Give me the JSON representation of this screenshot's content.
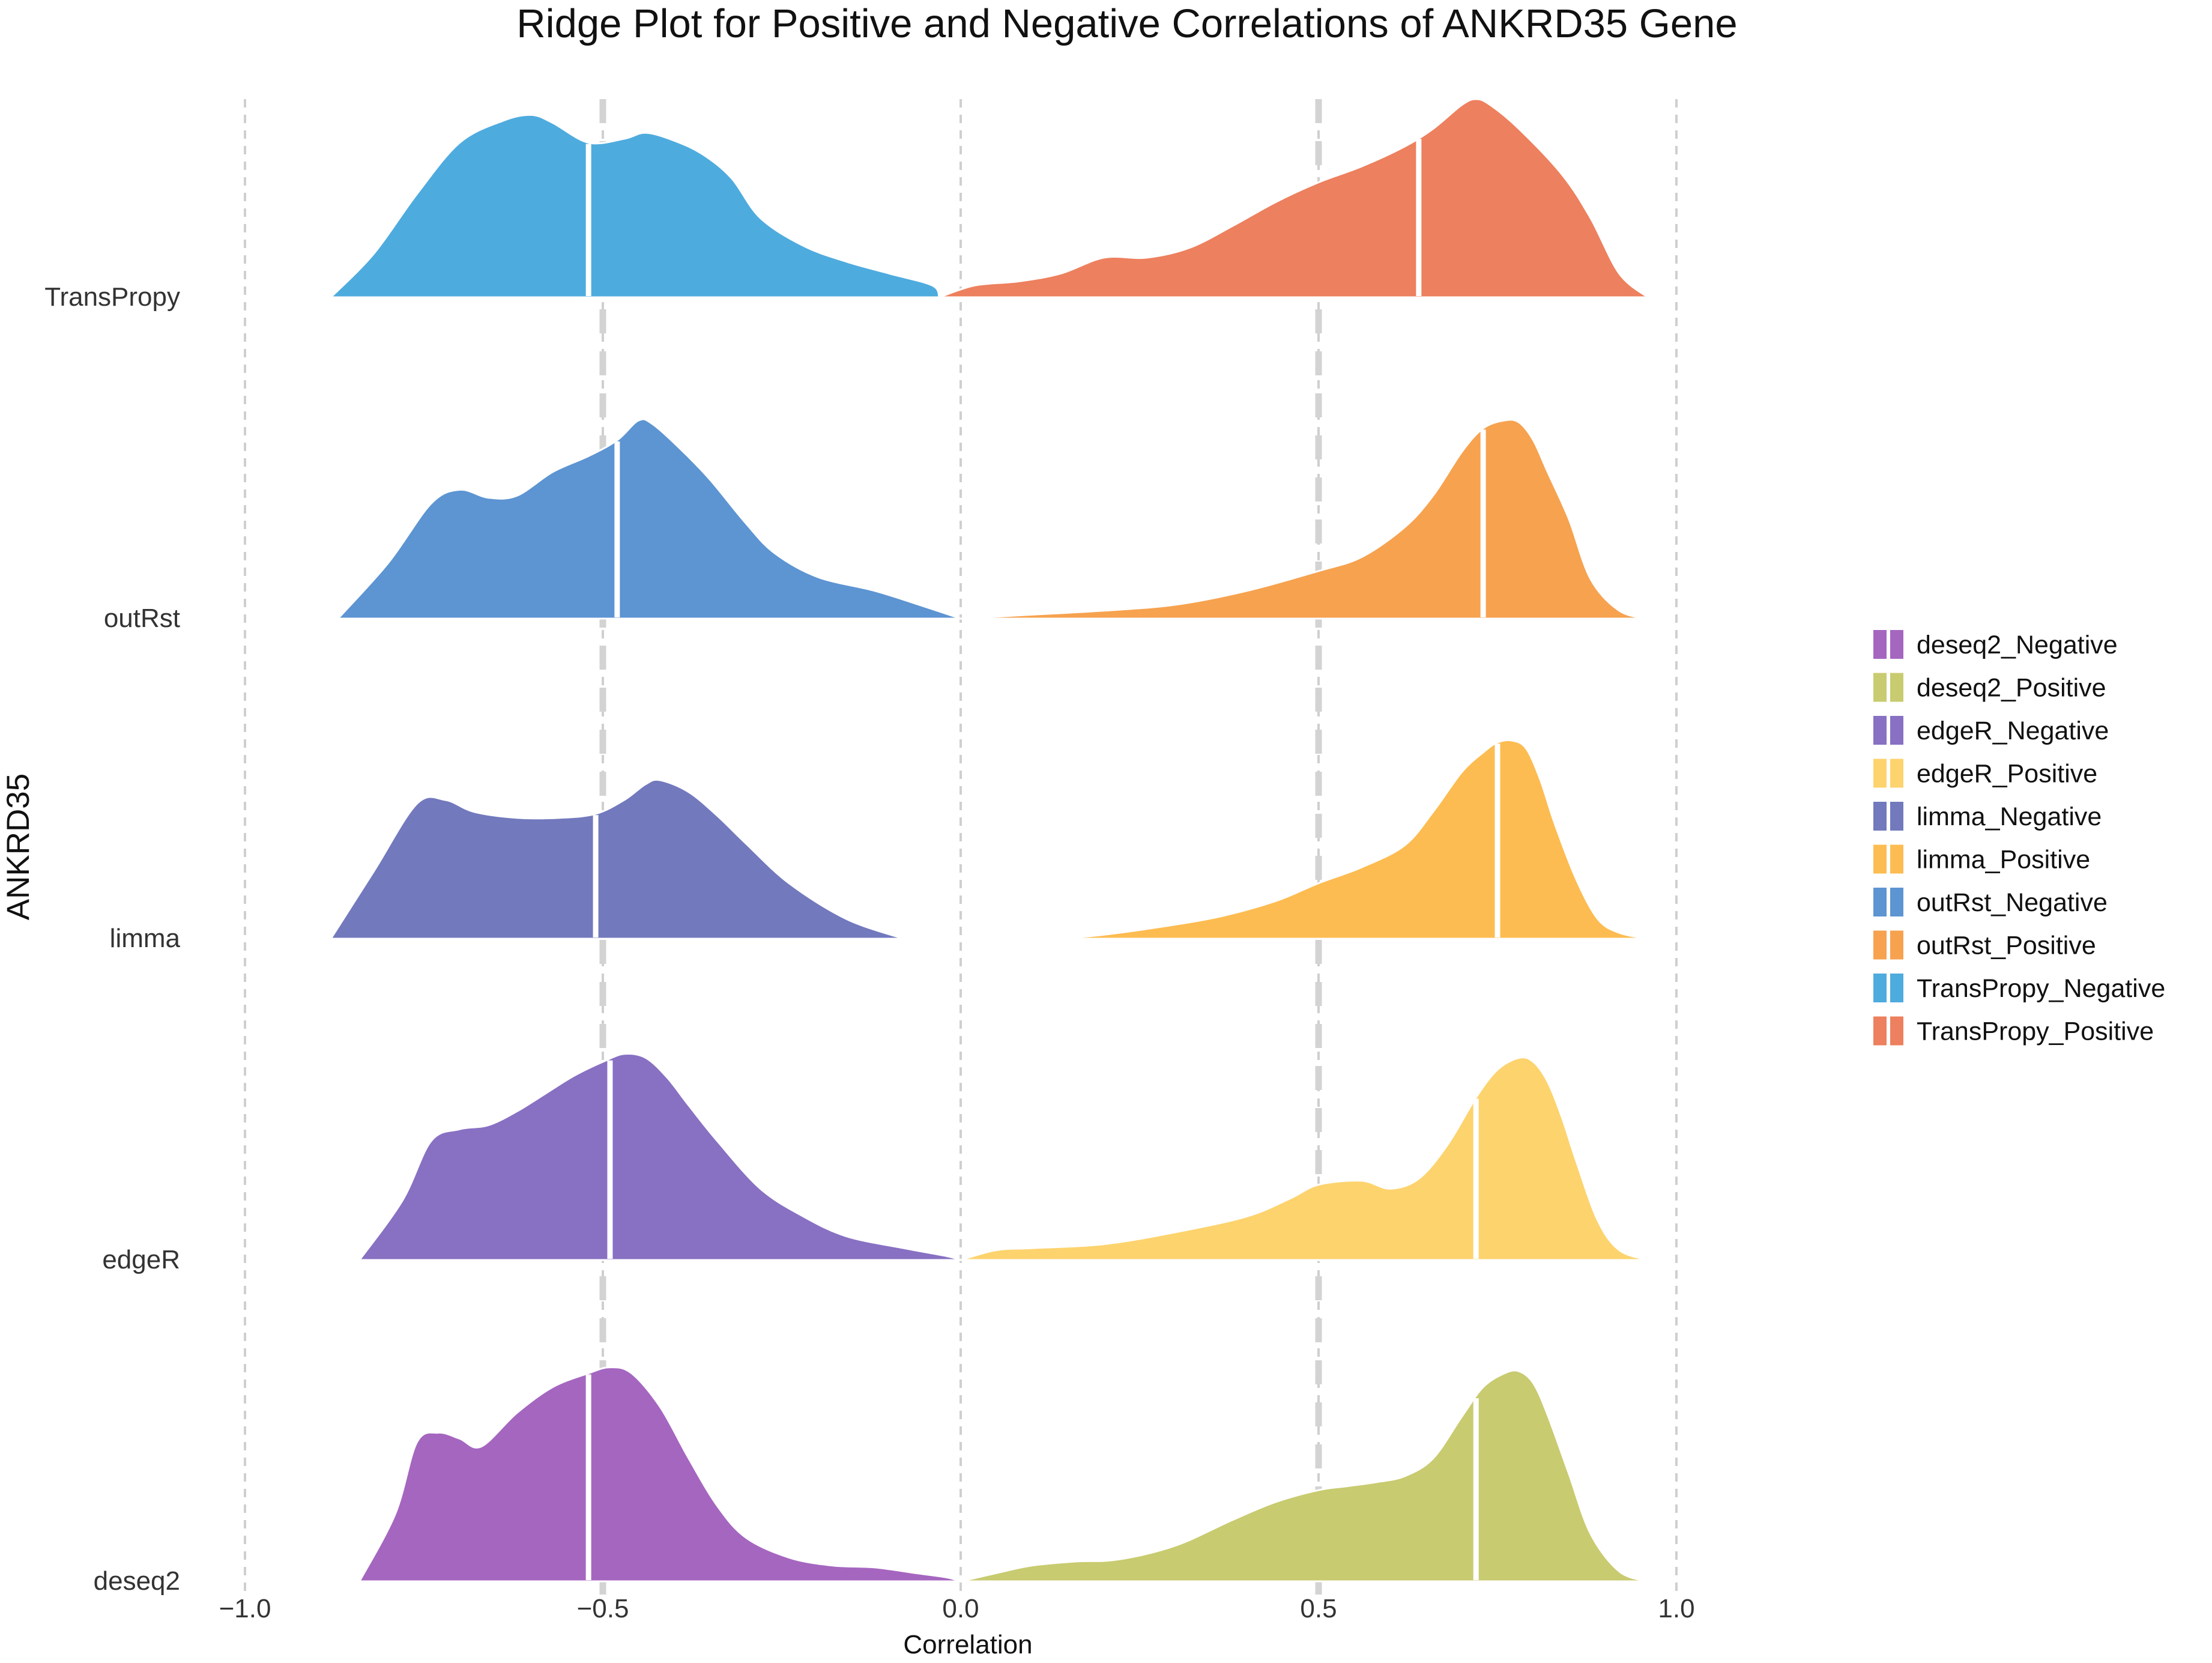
{
  "chart_data": {
    "type": "ridge",
    "title": "Ridge Plot for Positive and Negative Correlations of ANKRD35 Gene",
    "xlabel": "Correlation",
    "ylabel": "ANKRD35",
    "xlim": [
      -1.0,
      1.0
    ],
    "x_ticks": [
      "−1.0",
      "−0.5",
      "0.0",
      "0.5",
      "1.0"
    ],
    "x_tick_values": [
      -1.0,
      -0.5,
      0.0,
      0.5,
      1.0
    ],
    "reference_lines": [
      {
        "x": -0.5,
        "style": "dashed-bold"
      },
      {
        "x": 0.5,
        "style": "dashed-bold"
      }
    ],
    "grid": "vertical dashed",
    "legend_position": "right",
    "categories": [
      "deseq2",
      "edgeR",
      "limma",
      "outRst",
      "TransPropy"
    ],
    "series": [
      {
        "name": "TransPropy_Negative",
        "category": "TransPropy",
        "color": "#4EABDE",
        "median": -0.52,
        "x": [
          -0.88,
          -0.82,
          -0.76,
          -0.7,
          -0.64,
          -0.6,
          -0.57,
          -0.52,
          -0.47,
          -0.44,
          -0.4,
          -0.36,
          -0.32,
          -0.28,
          -0.22,
          -0.16,
          -0.1,
          -0.04,
          -0.03
        ],
        "y": [
          0.0,
          0.22,
          0.52,
          0.78,
          0.89,
          0.92,
          0.88,
          0.78,
          0.8,
          0.83,
          0.79,
          0.72,
          0.6,
          0.4,
          0.26,
          0.18,
          0.12,
          0.06,
          0.0
        ]
      },
      {
        "name": "TransPropy_Positive",
        "category": "TransPropy",
        "color": "#ED805E",
        "median": 0.64,
        "x": [
          -0.03,
          0.02,
          0.08,
          0.14,
          0.2,
          0.26,
          0.32,
          0.38,
          0.44,
          0.5,
          0.56,
          0.62,
          0.66,
          0.7,
          0.72,
          0.74,
          0.78,
          0.84,
          0.88,
          0.92,
          0.96
        ],
        "y": [
          0.0,
          0.06,
          0.08,
          0.12,
          0.2,
          0.2,
          0.25,
          0.36,
          0.48,
          0.58,
          0.66,
          0.76,
          0.85,
          0.97,
          1.0,
          0.97,
          0.85,
          0.62,
          0.4,
          0.12,
          0.0
        ]
      },
      {
        "name": "outRst_Negative",
        "category": "outRst",
        "color": "#5D94D2",
        "median": -0.48,
        "x": [
          -0.87,
          -0.8,
          -0.74,
          -0.7,
          -0.66,
          -0.62,
          -0.57,
          -0.52,
          -0.48,
          -0.45,
          -0.43,
          -0.39,
          -0.35,
          -0.3,
          -0.26,
          -0.2,
          -0.12,
          -0.05,
          0.0
        ],
        "y": [
          0.0,
          0.28,
          0.58,
          0.65,
          0.61,
          0.62,
          0.74,
          0.82,
          0.9,
          1.0,
          0.98,
          0.85,
          0.7,
          0.48,
          0.33,
          0.21,
          0.14,
          0.06,
          0.0
        ]
      },
      {
        "name": "outRst_Positive",
        "category": "outRst",
        "color": "#F6A24F",
        "median": 0.73,
        "x": [
          0.0,
          0.05,
          0.1,
          0.2,
          0.3,
          0.4,
          0.5,
          0.56,
          0.62,
          0.66,
          0.7,
          0.73,
          0.76,
          0.78,
          0.8,
          0.82,
          0.85,
          0.88,
          0.92,
          0.96
        ],
        "y": [
          0.0,
          0.01,
          0.02,
          0.04,
          0.07,
          0.14,
          0.24,
          0.31,
          0.46,
          0.62,
          0.84,
          0.96,
          1.0,
          0.99,
          0.9,
          0.74,
          0.5,
          0.2,
          0.04,
          0.0
        ]
      },
      {
        "name": "limma_Negative",
        "category": "limma",
        "color": "#7279BD",
        "median": -0.51,
        "x": [
          -0.88,
          -0.82,
          -0.76,
          -0.72,
          -0.68,
          -0.62,
          -0.56,
          -0.51,
          -0.47,
          -0.44,
          -0.42,
          -0.38,
          -0.34,
          -0.3,
          -0.24,
          -0.16,
          -0.08
        ],
        "y": [
          0.0,
          0.34,
          0.68,
          0.7,
          0.64,
          0.61,
          0.61,
          0.63,
          0.7,
          0.78,
          0.8,
          0.74,
          0.62,
          0.48,
          0.28,
          0.1,
          0.0
        ]
      },
      {
        "name": "limma_Positive",
        "category": "limma",
        "color": "#FDBC51",
        "median": 0.75,
        "x": [
          0.14,
          0.2,
          0.28,
          0.36,
          0.44,
          0.5,
          0.56,
          0.62,
          0.66,
          0.7,
          0.73,
          0.75,
          0.77,
          0.79,
          0.81,
          0.83,
          0.86,
          0.89,
          0.92,
          0.96
        ],
        "y": [
          0.0,
          0.02,
          0.06,
          0.11,
          0.19,
          0.28,
          0.36,
          0.47,
          0.64,
          0.84,
          0.94,
          0.99,
          1.0,
          0.96,
          0.8,
          0.58,
          0.3,
          0.1,
          0.03,
          0.0
        ]
      },
      {
        "name": "edgeR_Negative",
        "category": "edgeR",
        "color": "#8870C3",
        "median": -0.49,
        "x": [
          -0.84,
          -0.78,
          -0.74,
          -0.7,
          -0.66,
          -0.62,
          -0.58,
          -0.54,
          -0.5,
          -0.47,
          -0.44,
          -0.41,
          -0.38,
          -0.34,
          -0.28,
          -0.22,
          -0.16,
          -0.08,
          -0.02,
          0.0
        ],
        "y": [
          0.0,
          0.3,
          0.6,
          0.66,
          0.68,
          0.75,
          0.84,
          0.93,
          1.0,
          1.04,
          1.02,
          0.92,
          0.78,
          0.6,
          0.36,
          0.22,
          0.12,
          0.06,
          0.02,
          0.0
        ]
      },
      {
        "name": "edgeR_Positive",
        "category": "edgeR",
        "color": "#FDD36E",
        "median": 0.72,
        "x": [
          0.0,
          0.05,
          0.1,
          0.2,
          0.3,
          0.4,
          0.46,
          0.5,
          0.56,
          0.6,
          0.64,
          0.68,
          0.72,
          0.75,
          0.78,
          0.8,
          0.82,
          0.84,
          0.86,
          0.89,
          0.92,
          0.96
        ],
        "y": [
          0.0,
          0.05,
          0.06,
          0.08,
          0.14,
          0.22,
          0.31,
          0.38,
          0.4,
          0.36,
          0.41,
          0.58,
          0.82,
          0.96,
          1.02,
          1.0,
          0.9,
          0.72,
          0.5,
          0.2,
          0.05,
          0.0
        ]
      },
      {
        "name": "deseq2_Negative",
        "category": "deseq2",
        "color": "#A566C0",
        "median": -0.52,
        "x": [
          -0.84,
          -0.79,
          -0.76,
          -0.73,
          -0.7,
          -0.67,
          -0.62,
          -0.57,
          -0.52,
          -0.49,
          -0.46,
          -0.42,
          -0.38,
          -0.34,
          -0.3,
          -0.24,
          -0.18,
          -0.12,
          -0.06,
          -0.02,
          0.0
        ],
        "y": [
          0.0,
          0.34,
          0.7,
          0.75,
          0.72,
          0.68,
          0.85,
          0.98,
          1.05,
          1.08,
          1.05,
          0.88,
          0.62,
          0.38,
          0.22,
          0.12,
          0.08,
          0.07,
          0.04,
          0.02,
          0.0
        ]
      },
      {
        "name": "deseq2_Positive",
        "category": "deseq2",
        "color": "#C8CB6F",
        "median": 0.72,
        "x": [
          0.0,
          0.06,
          0.1,
          0.16,
          0.22,
          0.3,
          0.38,
          0.44,
          0.5,
          0.54,
          0.58,
          0.62,
          0.66,
          0.7,
          0.73,
          0.76,
          0.78,
          0.8,
          0.82,
          0.85,
          0.88,
          0.92,
          0.96
        ],
        "y": [
          0.0,
          0.05,
          0.08,
          0.1,
          0.11,
          0.18,
          0.31,
          0.4,
          0.46,
          0.48,
          0.5,
          0.53,
          0.62,
          0.83,
          0.98,
          1.05,
          1.06,
          1.0,
          0.84,
          0.54,
          0.24,
          0.05,
          0.0
        ]
      }
    ],
    "legend": [
      {
        "label": "deseq2_Negative",
        "color": "#A566C0"
      },
      {
        "label": "deseq2_Positive",
        "color": "#C8CB6F"
      },
      {
        "label": "edgeR_Negative",
        "color": "#8870C3"
      },
      {
        "label": "edgeR_Positive",
        "color": "#FDD36E"
      },
      {
        "label": "limma_Negative",
        "color": "#7279BD"
      },
      {
        "label": "limma_Positive",
        "color": "#FDBC51"
      },
      {
        "label": "outRst_Negative",
        "color": "#5D94D2"
      },
      {
        "label": "outRst_Positive",
        "color": "#F6A24F"
      },
      {
        "label": "TransPropy_Negative",
        "color": "#4EABDE"
      },
      {
        "label": "TransPropy_Positive",
        "color": "#ED805E"
      }
    ]
  }
}
